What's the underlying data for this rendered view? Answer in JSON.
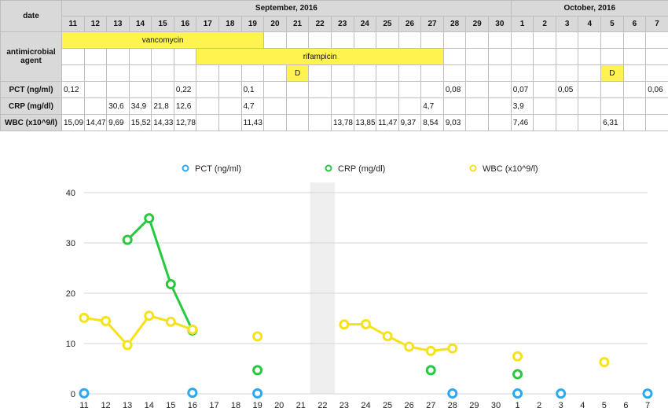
{
  "table": {
    "date_label": "date",
    "months": [
      {
        "label": "September, 2016"
      },
      {
        "label": "October, 2016"
      }
    ],
    "days": [
      "11",
      "12",
      "13",
      "14",
      "15",
      "16",
      "17",
      "18",
      "19",
      "20",
      "21",
      "22",
      "23",
      "24",
      "25",
      "26",
      "27",
      "28",
      "29",
      "30",
      "1",
      "2",
      "3",
      "4",
      "5",
      "6",
      "7"
    ],
    "antimicrobial_label": "antimicrobial agent",
    "vancomycin": {
      "label": "vancomycin"
    },
    "rifampicin": {
      "label": "rifampicin"
    },
    "d_marks": [
      {
        "day": "21",
        "label": "D"
      },
      {
        "day": "5",
        "label": "D"
      }
    ],
    "rows": [
      {
        "label": "PCT (ng/ml)",
        "values": [
          "0,12",
          "",
          "",
          "",
          "",
          "0,22",
          "",
          "",
          "0,1",
          "",
          "",
          "",
          "",
          "",
          "",
          "",
          "",
          "0,08",
          "",
          "",
          "0,07",
          "",
          "0,05",
          "",
          "",
          "",
          "0,06"
        ]
      },
      {
        "label": "CRP (mg/dl)",
        "values": [
          "",
          "",
          "30,6",
          "34,9",
          "21,8",
          "12,6",
          "",
          "",
          "4,7",
          "",
          "",
          "",
          "",
          "",
          "",
          "",
          "4,7",
          "",
          "",
          "",
          "3,9",
          "",
          "",
          "",
          "",
          "",
          ""
        ]
      },
      {
        "label": "WBC (x10^9/l)",
        "values": [
          "15,09",
          "14,47",
          "9,69",
          "15,52",
          "14,33",
          "12,78",
          "",
          "",
          "11,43",
          "",
          "",
          "",
          "13,78",
          "13,85",
          "11,47",
          "9,37",
          "8,54",
          "9,03",
          "",
          "",
          "7,46",
          "",
          "",
          "",
          "6,31",
          "",
          ""
        ]
      }
    ]
  },
  "chart_data": {
    "type": "line",
    "legend_position": "top",
    "x": [
      "11",
      "12",
      "13",
      "14",
      "15",
      "16",
      "17",
      "18",
      "19",
      "20",
      "21",
      "22",
      "23",
      "24",
      "25",
      "26",
      "27",
      "28",
      "29",
      "30",
      "1",
      "2",
      "3",
      "4",
      "5",
      "6",
      "7"
    ],
    "y_ticks": [
      0,
      10,
      20,
      30,
      40
    ],
    "ylim": [
      0,
      42
    ],
    "grid": true,
    "highlight_x": "22",
    "series": [
      {
        "name": "PCT (ng/ml)",
        "color": "#2aa8f2",
        "values": [
          0.12,
          null,
          null,
          null,
          null,
          0.22,
          null,
          null,
          0.1,
          null,
          null,
          null,
          null,
          null,
          null,
          null,
          null,
          0.08,
          null,
          null,
          0.07,
          null,
          0.05,
          null,
          null,
          null,
          0.06
        ]
      },
      {
        "name": "CRP (mg/dl)",
        "color": "#27c93f",
        "values": [
          null,
          null,
          30.6,
          34.9,
          21.8,
          12.6,
          null,
          null,
          4.7,
          null,
          null,
          null,
          null,
          null,
          null,
          null,
          4.7,
          null,
          null,
          null,
          3.9,
          null,
          null,
          null,
          null,
          null,
          null
        ]
      },
      {
        "name": "WBC (x10^9/l)",
        "color": "#f5e21b",
        "values": [
          15.09,
          14.47,
          9.69,
          15.52,
          14.33,
          12.78,
          null,
          null,
          11.43,
          null,
          null,
          null,
          13.78,
          13.85,
          11.47,
          9.37,
          8.54,
          9.03,
          null,
          null,
          7.46,
          null,
          null,
          null,
          6.31,
          null,
          null
        ]
      }
    ]
  }
}
